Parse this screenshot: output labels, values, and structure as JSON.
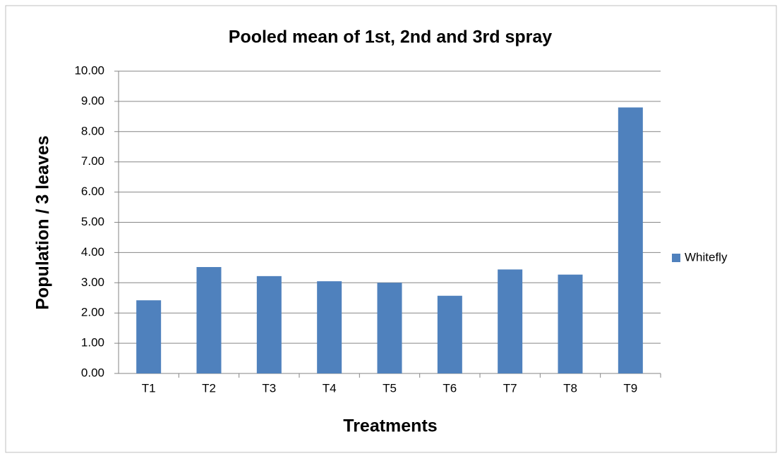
{
  "chart_data": {
    "type": "bar",
    "title": "Pooled mean of 1st, 2nd and 3rd spray",
    "x_label": "Treatments",
    "y_label": "Population / 3 leaves",
    "categories": [
      "T1",
      "T2",
      "T3",
      "T4",
      "T5",
      "T6",
      "T7",
      "T8",
      "T9"
    ],
    "series": [
      {
        "name": "Whitefly",
        "color": "#4f81bd",
        "values": [
          2.42,
          3.52,
          3.22,
          3.05,
          3.0,
          2.57,
          3.44,
          3.27,
          8.8
        ]
      }
    ],
    "ylim": [
      0,
      10
    ],
    "yticks": [
      {
        "value": 0,
        "label": "0.00"
      },
      {
        "value": 1,
        "label": "1.00"
      },
      {
        "value": 2,
        "label": "2.00"
      },
      {
        "value": 3,
        "label": "3.00"
      },
      {
        "value": 4,
        "label": "4.00"
      },
      {
        "value": 5,
        "label": "5.00"
      },
      {
        "value": 6,
        "label": "6.00"
      },
      {
        "value": 7,
        "label": "7.00"
      },
      {
        "value": 8,
        "label": "8.00"
      },
      {
        "value": 9,
        "label": "9.00"
      },
      {
        "value": 10,
        "label": "10.00"
      }
    ],
    "grid": true,
    "legend": "right"
  }
}
